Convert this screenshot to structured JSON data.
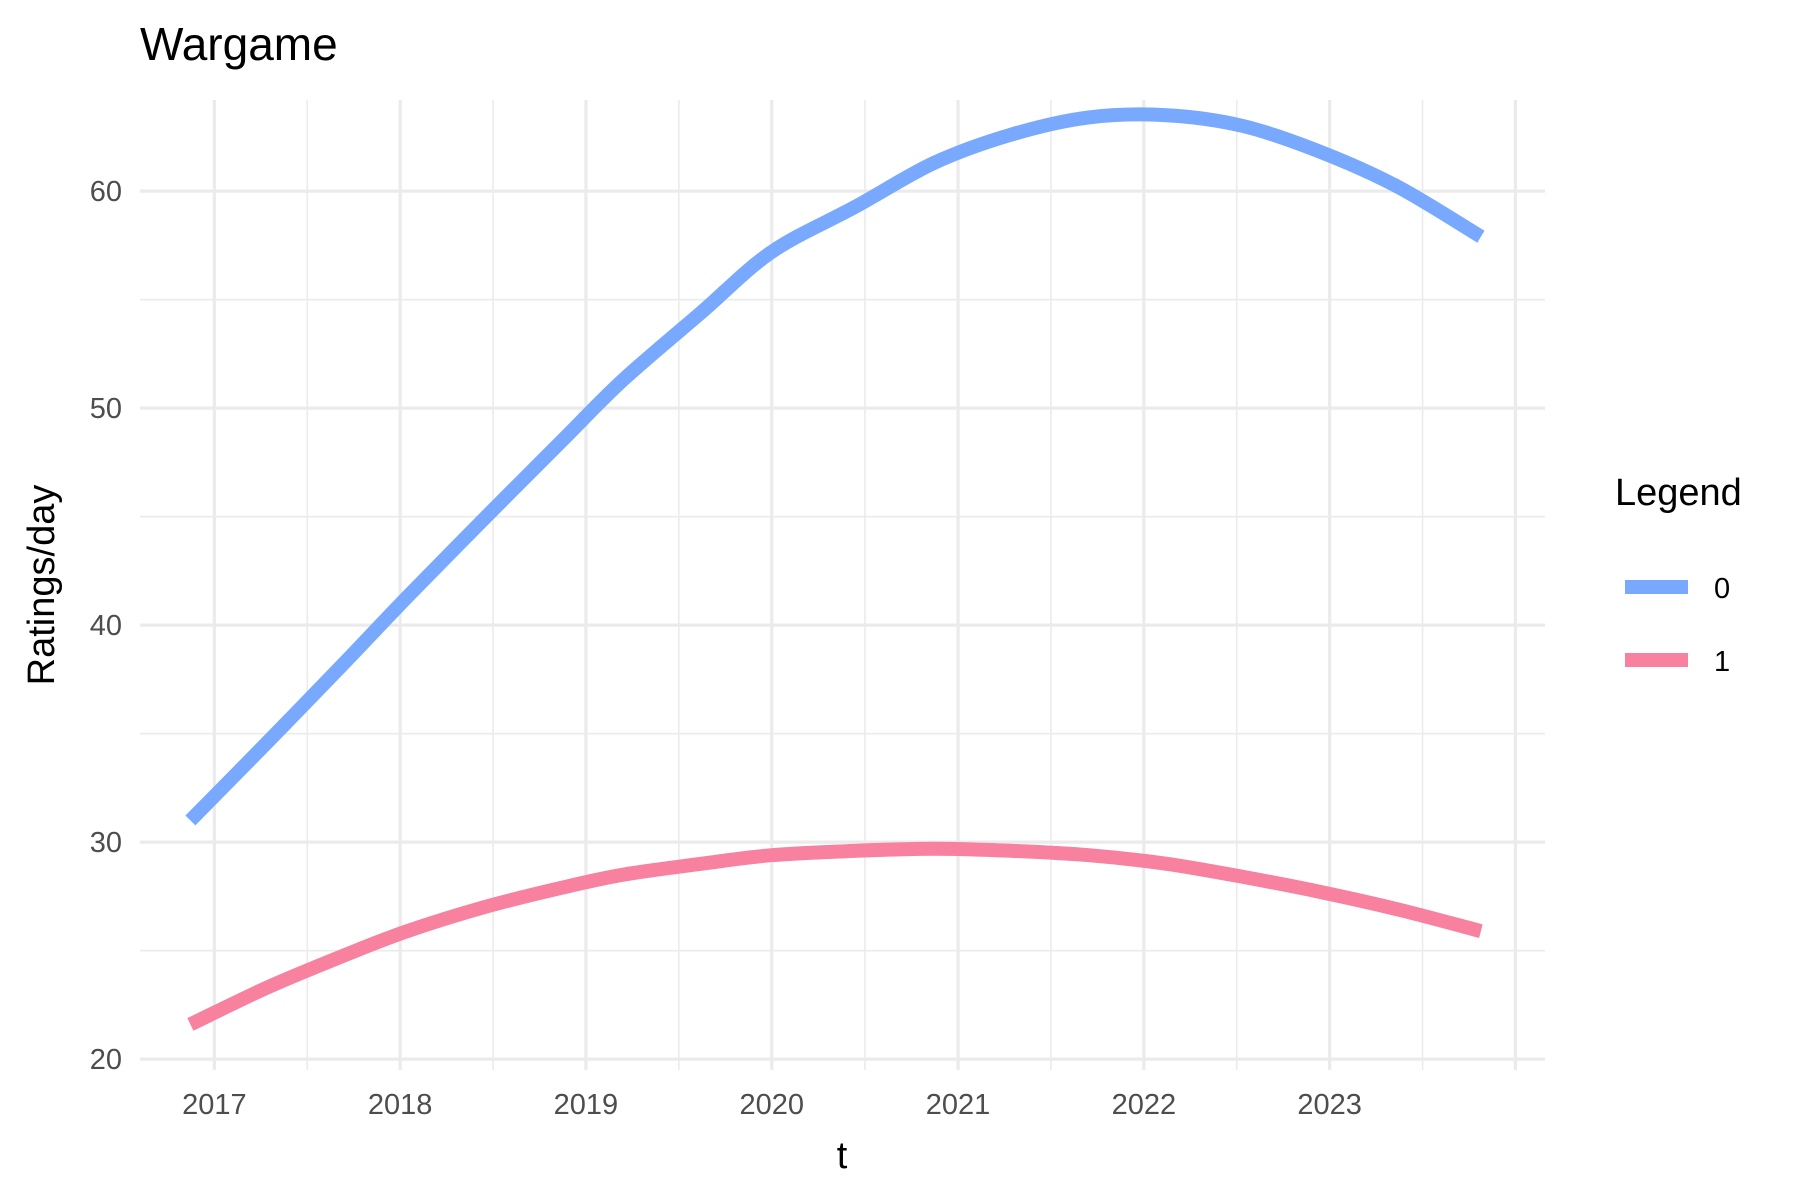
{
  "chart_data": {
    "type": "line",
    "title": "Wargame",
    "xlabel": "t",
    "ylabel": "Ratings/day",
    "xlim": [
      "2016-08-08",
      "2024-02-28"
    ],
    "ylim": [
      19.5,
      64.2
    ],
    "x_ticks": [
      "2017",
      "2018",
      "2019",
      "2020",
      "2021",
      "2022",
      "2023"
    ],
    "y_ticks": [
      20,
      30,
      40,
      50,
      60
    ],
    "grid": true,
    "legend": {
      "title": "Legend",
      "position": "right"
    },
    "x": [
      "2016-11-15",
      "2017-04-15",
      "2017-09-15",
      "2018-01-15",
      "2018-06-15",
      "2018-11-15",
      "2019-03-15",
      "2019-08-15",
      "2020-01-01",
      "2020-06-15",
      "2020-11-15",
      "2021-04-15",
      "2021-09-15",
      "2022-02-15",
      "2022-07-15",
      "2022-12-15",
      "2023-05-15",
      "2023-10-25"
    ],
    "series": [
      {
        "name": "0",
        "color": "#78a9ff",
        "values": [
          31.0,
          34.6,
          38.3,
          41.3,
          44.9,
          48.5,
          51.3,
          54.4,
          57.2,
          59.3,
          61.3,
          62.6,
          63.4,
          63.5,
          63.0,
          61.8,
          60.2,
          57.9
        ]
      },
      {
        "name": "1",
        "color": "#f7819f",
        "values": [
          21.6,
          23.3,
          24.8,
          25.9,
          27.0,
          27.9,
          28.5,
          29.0,
          29.4,
          29.6,
          29.7,
          29.6,
          29.4,
          29.0,
          28.4,
          27.7,
          26.9,
          25.9
        ]
      }
    ]
  }
}
